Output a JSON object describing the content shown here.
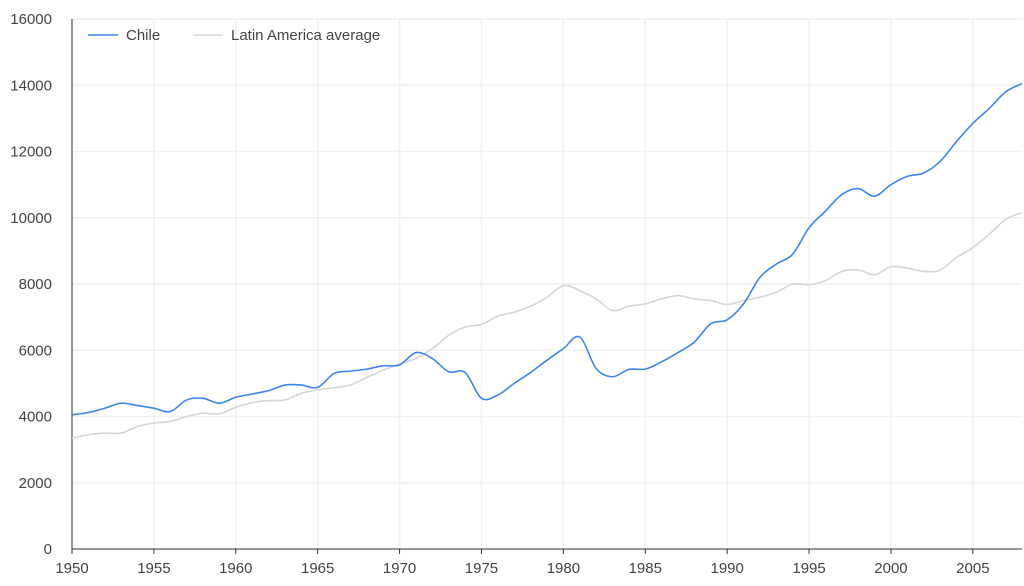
{
  "chart_data": {
    "type": "line",
    "title": "",
    "xlabel": "",
    "ylabel": "",
    "xlim": [
      1950,
      2008
    ],
    "ylim": [
      0,
      16000
    ],
    "grid": true,
    "legend_placement": "top-left",
    "x_ticks": [
      1950,
      1955,
      1960,
      1965,
      1970,
      1975,
      1980,
      1985,
      1990,
      1995,
      2000,
      2005
    ],
    "y_ticks": [
      0,
      2000,
      4000,
      6000,
      8000,
      10000,
      12000,
      14000,
      16000
    ],
    "x": [
      1950,
      1951,
      1952,
      1953,
      1954,
      1955,
      1956,
      1957,
      1958,
      1959,
      1960,
      1961,
      1962,
      1963,
      1964,
      1965,
      1966,
      1967,
      1968,
      1969,
      1970,
      1971,
      1972,
      1973,
      1974,
      1975,
      1976,
      1977,
      1978,
      1979,
      1980,
      1981,
      1982,
      1983,
      1984,
      1985,
      1986,
      1987,
      1988,
      1989,
      1990,
      1991,
      1992,
      1993,
      1994,
      1995,
      1996,
      1997,
      1998,
      1999,
      2000,
      2001,
      2002,
      2003,
      2004,
      2005,
      2006,
      2007,
      2008
    ],
    "series": [
      {
        "name": "Chile",
        "color": "#3b86f0",
        "values": [
          4050,
          4120,
          4250,
          4400,
          4330,
          4250,
          4150,
          4500,
          4550,
          4400,
          4580,
          4680,
          4780,
          4950,
          4950,
          4880,
          5300,
          5370,
          5430,
          5530,
          5560,
          5930,
          5750,
          5350,
          5330,
          4550,
          4650,
          5000,
          5330,
          5700,
          6050,
          6400,
          5450,
          5200,
          5420,
          5430,
          5650,
          5930,
          6250,
          6800,
          6920,
          7400,
          8200,
          8600,
          8900,
          9700,
          10200,
          10700,
          10880,
          10650,
          11000,
          11250,
          11350,
          11700,
          12300,
          12850,
          13300,
          13800,
          14050
        ]
      },
      {
        "name": "Latin America average",
        "color": "#d6d6d6",
        "values": [
          3350,
          3450,
          3500,
          3500,
          3700,
          3800,
          3850,
          4000,
          4100,
          4080,
          4280,
          4420,
          4480,
          4500,
          4700,
          4800,
          4870,
          4950,
          5180,
          5400,
          5580,
          5750,
          6050,
          6450,
          6700,
          6780,
          7030,
          7150,
          7330,
          7600,
          7950,
          7800,
          7550,
          7200,
          7330,
          7400,
          7550,
          7650,
          7550,
          7500,
          7380,
          7500,
          7600,
          7750,
          8000,
          7980,
          8100,
          8380,
          8420,
          8280,
          8520,
          8480,
          8380,
          8420,
          8800,
          9100,
          9500,
          9950,
          10150
        ]
      }
    ]
  }
}
